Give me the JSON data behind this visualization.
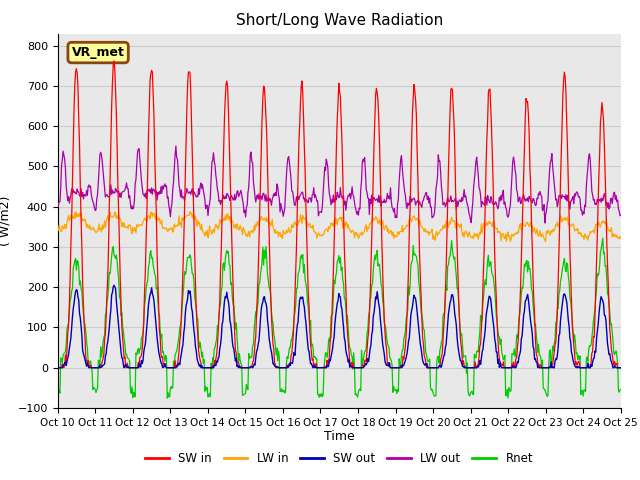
{
  "title": "Short/Long Wave Radiation",
  "xlabel": "Time",
  "ylabel": "( W/m2)",
  "ylim": [
    -100,
    830
  ],
  "yticks": [
    -100,
    0,
    100,
    200,
    300,
    400,
    500,
    600,
    700,
    800
  ],
  "xtick_labels": [
    "Oct 10",
    "Oct 11",
    "Oct 12",
    "Oct 13",
    "Oct 14",
    "Oct 15",
    "Oct 16",
    "Oct 17",
    "Oct 18",
    "Oct 19",
    "Oct 20",
    "Oct 21",
    "Oct 22",
    "Oct 23",
    "Oct 24",
    "Oct 25"
  ],
  "annotation_text": "VR_met",
  "legend_labels": [
    "SW in",
    "LW in",
    "SW out",
    "LW out",
    "Rnet"
  ],
  "colors": {
    "SW_in": "#FF0000",
    "LW_in": "#FFA500",
    "SW_out": "#0000BB",
    "LW_out": "#AA00AA",
    "Rnet": "#00CC00"
  },
  "grid_color": "#CCCCCC",
  "bg_color": "#E8E8E8",
  "n_days": 15
}
